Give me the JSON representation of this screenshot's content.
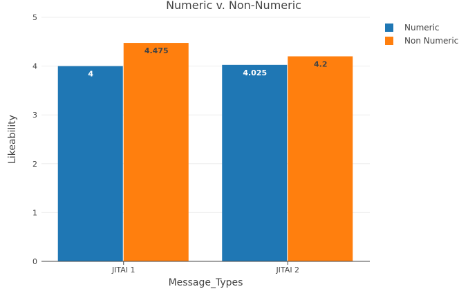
{
  "chart_data": {
    "type": "bar",
    "title": "Numeric v. Non-Numeric",
    "xlabel": "Message_Types",
    "ylabel": "Likeability",
    "categories": [
      "JITAI 1",
      "JITAI 2"
    ],
    "series": [
      {
        "name": "Numeric",
        "values": [
          4,
          4.025
        ],
        "value_labels": [
          "4",
          "4.025"
        ],
        "color": "#1f77b4",
        "label_color": "#ffffff"
      },
      {
        "name": "Non Numeric",
        "values": [
          4.475,
          4.2
        ],
        "value_labels": [
          "4.475",
          "4.2"
        ],
        "color": "#ff7f0e",
        "label_color": "#444444"
      }
    ],
    "ylim": [
      0,
      5
    ],
    "yticks": [
      0,
      1,
      2,
      3,
      4,
      5
    ],
    "grid": true,
    "legend_position": "top-right"
  }
}
